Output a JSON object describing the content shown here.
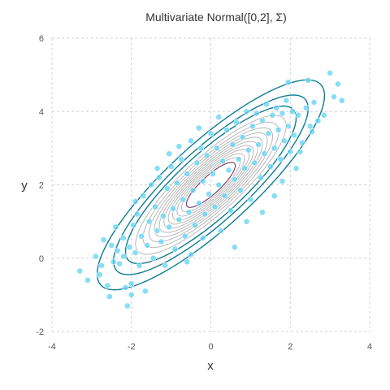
{
  "chart_data": {
    "type": "scatter",
    "title": "Multivariate Normal([0,2], Σ)",
    "xlabel": "x",
    "ylabel": "y",
    "xlim": [
      -4,
      4
    ],
    "ylim": [
      -2,
      6
    ],
    "x_ticks": [
      -4,
      -2,
      0,
      2,
      4
    ],
    "y_ticks": [
      -2,
      0,
      2,
      4,
      6
    ],
    "grid": true,
    "colors": {
      "points": "#5fd3f3",
      "contour_outer": "#0e7c93",
      "contour_inner": "#b8b8b8",
      "contour_center": "#7a3f6e"
    },
    "distribution": {
      "mean": [
        0,
        2
      ],
      "var_x": 1,
      "var_y": 1,
      "cov": 0.85
    },
    "contour_levels": [
      0.005,
      0.015,
      0.03,
      0.05,
      0.07,
      0.09,
      0.11,
      0.13,
      0.15,
      0.17,
      0.19,
      0.21,
      0.23,
      0.25
    ],
    "outer_contour_count": 3,
    "center_contour_count": 1,
    "points": [
      [
        -3.3,
        -0.35
      ],
      [
        -3.1,
        -0.6
      ],
      [
        -2.9,
        0.05
      ],
      [
        -2.75,
        -0.2
      ],
      [
        -2.7,
        0.5
      ],
      [
        -2.6,
        -0.75
      ],
      [
        -2.55,
        -1.05
      ],
      [
        -2.5,
        0.35
      ],
      [
        -2.45,
        -0.1
      ],
      [
        -2.35,
        0.2
      ],
      [
        -2.3,
        -0.15
      ],
      [
        -2.2,
        0.05
      ],
      [
        -2.2,
        0.55
      ],
      [
        -2.15,
        -0.8
      ],
      [
        -2.1,
        -1.3
      ],
      [
        -2.05,
        0.3
      ],
      [
        -2.0,
        -1.0
      ],
      [
        -1.95,
        0.9
      ],
      [
        -1.9,
        0.15
      ],
      [
        -1.85,
        1.2
      ],
      [
        -1.8,
        -0.2
      ],
      [
        -1.75,
        0.6
      ],
      [
        -1.7,
        1.7
      ],
      [
        -1.65,
        -0.9
      ],
      [
        -1.6,
        0.35
      ],
      [
        -1.55,
        1.0
      ],
      [
        -1.5,
        2.0
      ],
      [
        -1.45,
        0.0
      ],
      [
        -1.4,
        1.4
      ],
      [
        -1.35,
        0.75
      ],
      [
        -1.3,
        2.2
      ],
      [
        -1.25,
        0.45
      ],
      [
        -1.2,
        1.15
      ],
      [
        -1.15,
        -0.2
      ],
      [
        -1.1,
        1.9
      ],
      [
        -1.05,
        0.85
      ],
      [
        -1.0,
        2.5
      ],
      [
        -0.95,
        1.35
      ],
      [
        -0.9,
        0.25
      ],
      [
        -0.85,
        2.05
      ],
      [
        -0.8,
        1.05
      ],
      [
        -0.75,
        2.7
      ],
      [
        -0.7,
        1.6
      ],
      [
        -0.65,
        0.6
      ],
      [
        -0.6,
        2.3
      ],
      [
        -0.55,
        1.25
      ],
      [
        -0.5,
        3.2
      ],
      [
        -0.45,
        1.85
      ],
      [
        -0.4,
        0.9
      ],
      [
        -0.35,
        2.6
      ],
      [
        -0.3,
        1.5
      ],
      [
        -0.25,
        3.0
      ],
      [
        -0.2,
        2.1
      ],
      [
        -0.15,
        1.2
      ],
      [
        -0.1,
        2.8
      ],
      [
        -0.05,
        1.75
      ],
      [
        0.0,
        3.4
      ],
      [
        0.05,
        2.3
      ],
      [
        0.1,
        1.4
      ],
      [
        0.15,
        3.0
      ],
      [
        0.2,
        2.0
      ],
      [
        0.25,
        0.75
      ],
      [
        0.3,
        2.65
      ],
      [
        0.35,
        1.7
      ],
      [
        0.4,
        3.5
      ],
      [
        0.45,
        2.4
      ],
      [
        0.5,
        1.3
      ],
      [
        0.55,
        3.1
      ],
      [
        0.6,
        2.15
      ],
      [
        0.65,
        3.7
      ],
      [
        0.7,
        2.7
      ],
      [
        0.75,
        1.85
      ],
      [
        0.8,
        3.3
      ],
      [
        0.85,
        2.45
      ],
      [
        0.9,
        4.0
      ],
      [
        0.95,
        2.95
      ],
      [
        1.0,
        1.6
      ],
      [
        1.05,
        3.6
      ],
      [
        1.1,
        2.6
      ],
      [
        1.15,
        3.95
      ],
      [
        1.2,
        3.1
      ],
      [
        1.25,
        2.2
      ],
      [
        1.3,
        3.75
      ],
      [
        1.35,
        2.85
      ],
      [
        1.4,
        4.2
      ],
      [
        1.45,
        3.4
      ],
      [
        1.5,
        2.5
      ],
      [
        1.55,
        3.9
      ],
      [
        1.6,
        3.0
      ],
      [
        1.65,
        4.1
      ],
      [
        1.7,
        3.5
      ],
      [
        1.75,
        2.7
      ],
      [
        1.8,
        3.95
      ],
      [
        1.85,
        3.2
      ],
      [
        1.9,
        4.3
      ],
      [
        1.95,
        3.6
      ],
      [
        2.0,
        2.9
      ],
      [
        2.05,
        4.0
      ],
      [
        2.1,
        3.35
      ],
      [
        2.2,
        3.9
      ],
      [
        2.3,
        3.15
      ],
      [
        2.4,
        4.1
      ],
      [
        2.5,
        3.6
      ],
      [
        2.6,
        4.25
      ],
      [
        2.7,
        3.75
      ],
      [
        2.85,
        3.9
      ],
      [
        3.0,
        5.05
      ],
      [
        3.1,
        4.4
      ],
      [
        3.2,
        4.75
      ],
      [
        3.3,
        4.3
      ],
      [
        2.45,
        4.85
      ],
      [
        1.95,
        4.8
      ],
      [
        2.25,
        2.9
      ],
      [
        2.55,
        3.45
      ],
      [
        1.6,
        1.7
      ],
      [
        1.3,
        1.25
      ],
      [
        0.6,
        0.3
      ],
      [
        -0.5,
        0.1
      ],
      [
        -2.0,
        -0.7
      ],
      [
        -2.8,
        -0.45
      ],
      [
        -0.8,
        3.05
      ],
      [
        -1.05,
        2.85
      ],
      [
        -0.3,
        3.55
      ],
      [
        0.2,
        3.85
      ],
      [
        -1.35,
        2.45
      ],
      [
        -1.9,
        1.55
      ],
      [
        -2.4,
        0.85
      ],
      [
        -0.6,
        -0.1
      ],
      [
        0.9,
        1.0
      ],
      [
        1.8,
        2.1
      ],
      [
        2.15,
        2.45
      ],
      [
        -0.2,
        0.55
      ]
    ]
  }
}
